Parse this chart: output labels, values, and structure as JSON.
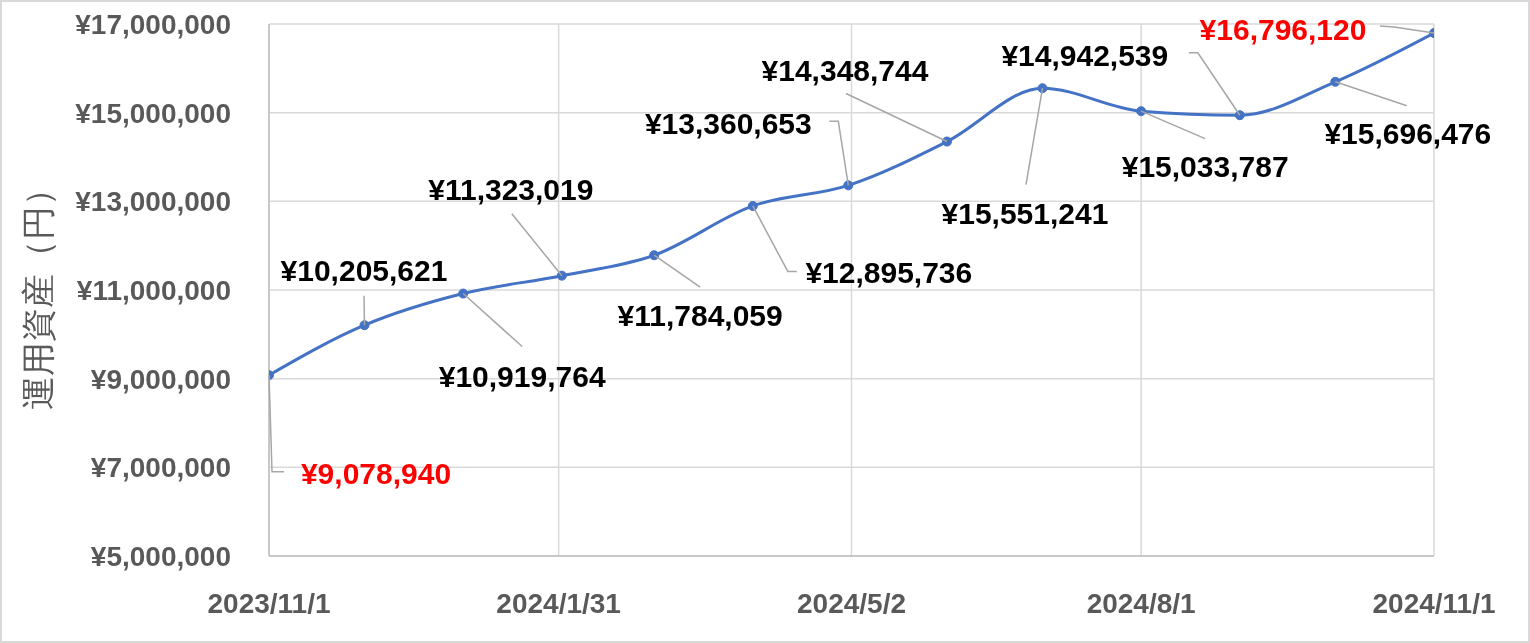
{
  "chart_data": {
    "type": "line",
    "ylabel": "運用資産（円）",
    "x": [
      "2023-11-01",
      "2023-12-01",
      "2024-01-01",
      "2024-02-01",
      "2024-03-01",
      "2024-04-01",
      "2024-05-01",
      "2024-06-01",
      "2024-07-01",
      "2024-08-01",
      "2024-09-01",
      "2024-10-01",
      "2024-11-01"
    ],
    "values": [
      9078940,
      10205621,
      10919764,
      11323019,
      11784059,
      12895736,
      13360653,
      14348744,
      15551241,
      15033787,
      14942539,
      15696476,
      16796120
    ],
    "value_labels": [
      "¥9,078,940",
      "¥10,205,621",
      "¥10,919,764",
      "¥11,323,019",
      "¥11,784,059",
      "¥12,895,736",
      "¥13,360,653",
      "¥14,348,744",
      "¥15,551,241",
      "¥15,033,787",
      "¥14,942,539",
      "¥15,696,476",
      "¥16,796,120"
    ],
    "color": "#4472c4",
    "xlim": [
      "2023-11-01",
      "2024-11-01"
    ],
    "xticks": [
      {
        "value": "2023-11-01",
        "label": "2023/11/1"
      },
      {
        "value": "2024-01-31",
        "label": "2024/1/31"
      },
      {
        "value": "2024-05-02",
        "label": "2024/5/2"
      },
      {
        "value": "2024-08-01",
        "label": "2024/8/1"
      },
      {
        "value": "2024-11-01",
        "label": "2024/11/1"
      }
    ],
    "ylim": [
      5000000,
      17000000
    ],
    "yticks": [
      {
        "value": 5000000,
        "label": "¥5,000,000"
      },
      {
        "value": 7000000,
        "label": "¥7,000,000"
      },
      {
        "value": 9000000,
        "label": "¥9,000,000"
      },
      {
        "value": 11000000,
        "label": "¥11,000,000"
      },
      {
        "value": 13000000,
        "label": "¥13,000,000"
      },
      {
        "value": 15000000,
        "label": "¥15,000,000"
      },
      {
        "value": 17000000,
        "label": "¥17,000,000"
      }
    ],
    "grid": true,
    "marker": "circle",
    "line_style": "solid"
  }
}
